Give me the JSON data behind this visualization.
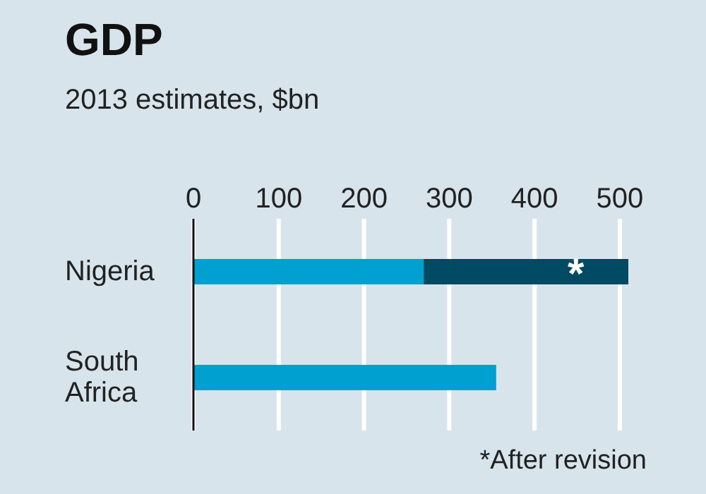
{
  "chart_data": {
    "type": "bar",
    "title": "GDP",
    "subtitle": "2013 estimates, $bn",
    "orientation": "horizontal",
    "stacked": true,
    "categories": [
      "Nigeria",
      "South Africa"
    ],
    "series": [
      {
        "color": "#00a0d0",
        "values": [
          270,
          355
        ]
      },
      {
        "color": "#004a63",
        "values": [
          240,
          null
        ]
      }
    ],
    "xticks": [
      0,
      100,
      200,
      300,
      400,
      500
    ],
    "xlim": [
      0,
      510
    ],
    "grid": "x",
    "annotations": [
      "*",
      "*After revision"
    ]
  }
}
